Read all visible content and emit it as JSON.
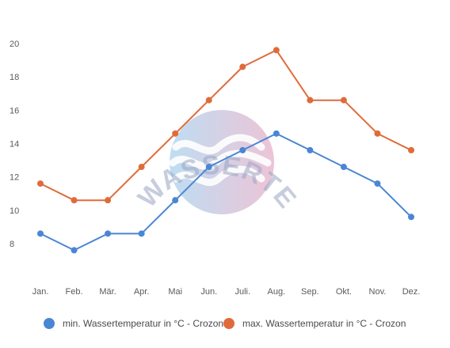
{
  "chart_data": {
    "type": "line",
    "categories": [
      "Jan.",
      "Feb.",
      "Mär.",
      "Apr.",
      "Mai",
      "Jun.",
      "Juli.",
      "Aug.",
      "Sep.",
      "Okt.",
      "Nov.",
      "Dez."
    ],
    "series": [
      {
        "name": "min. Wassertemperatur in °C - Crozon",
        "color": "#4a86d4",
        "values": [
          8.6,
          7.6,
          8.6,
          8.6,
          10.6,
          12.6,
          13.6,
          14.6,
          13.6,
          12.6,
          11.6,
          9.6
        ]
      },
      {
        "name": "max. Wassertemperatur in °C - Crozon",
        "color": "#e06b3a",
        "values": [
          11.6,
          10.6,
          10.6,
          12.6,
          14.6,
          16.6,
          18.6,
          19.6,
          16.6,
          16.6,
          14.6,
          13.6
        ]
      }
    ],
    "y_ticks": [
      "8",
      "10",
      "12",
      "14",
      "16",
      "18",
      "20"
    ],
    "ylim": [
      7,
      20.5
    ],
    "grid": false,
    "legend_position": "bottom"
  },
  "watermark": {
    "text": "WASSERTEMPERATUR.ORG",
    "gradient_colors": [
      "#a9d2ee",
      "#e6b0c9"
    ]
  }
}
